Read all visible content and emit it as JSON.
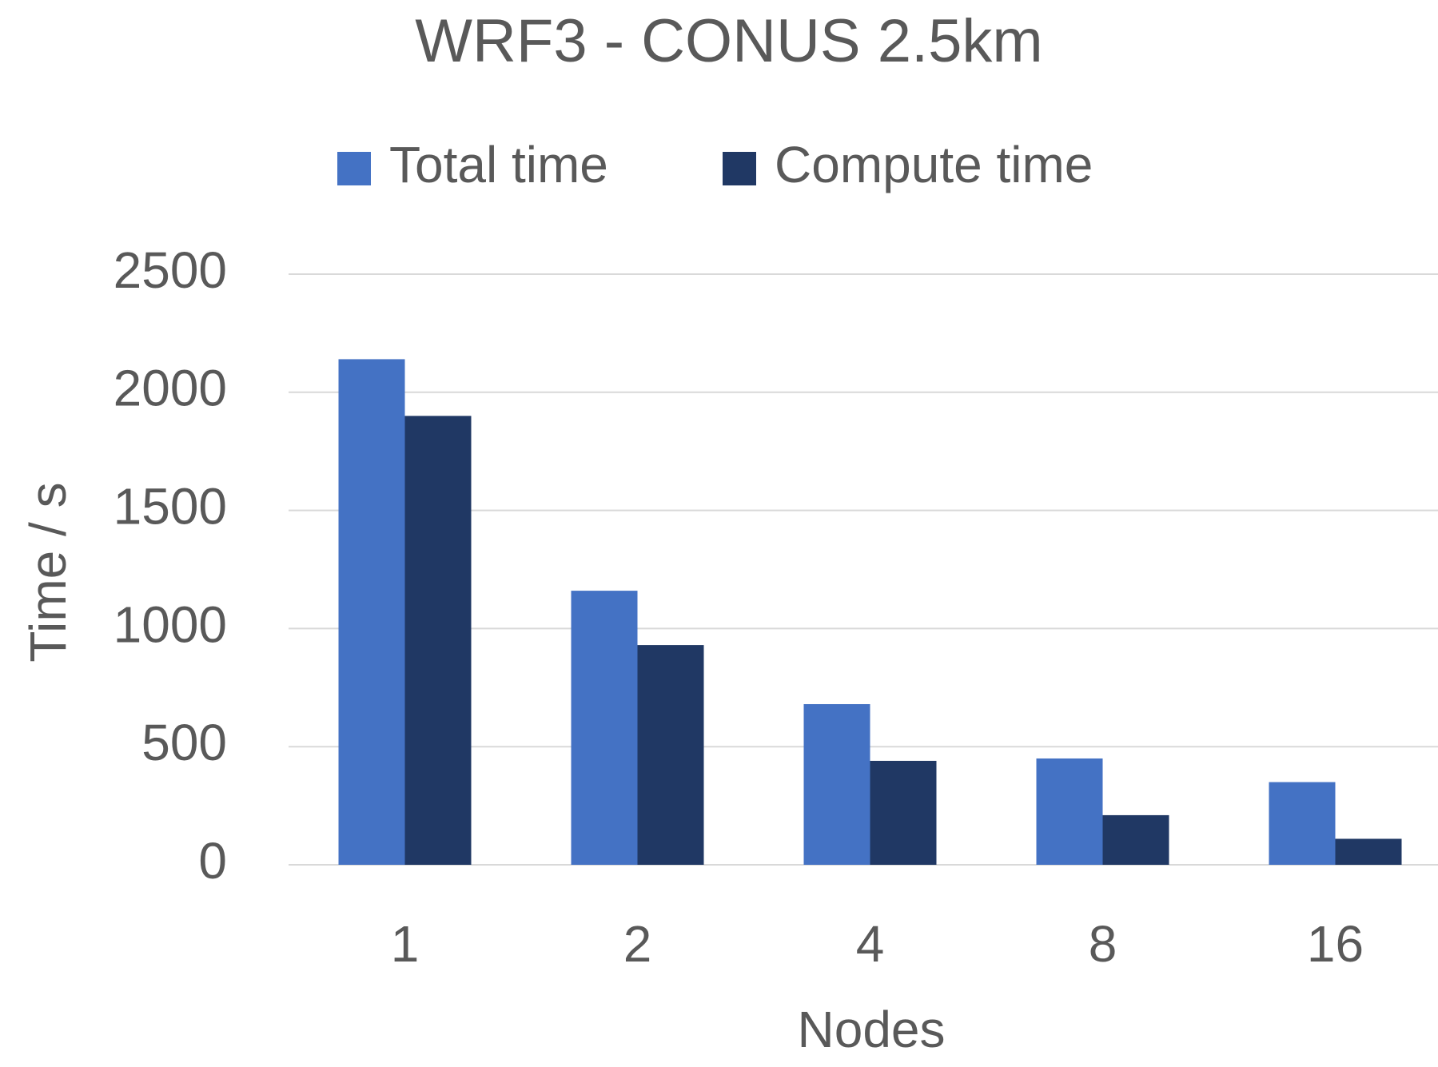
{
  "chart_data": {
    "type": "bar",
    "title": "WRF3 - CONUS 2.5km",
    "x_label": "Nodes",
    "y_label": "Time / s",
    "categories": [
      "1",
      "2",
      "4",
      "8",
      "16"
    ],
    "series": [
      {
        "name": "Total time",
        "color": "#4472c4",
        "values": [
          2140,
          1160,
          680,
          450,
          350
        ]
      },
      {
        "name": "Compute time",
        "color": "#203864",
        "values": [
          1900,
          930,
          440,
          210,
          110
        ]
      }
    ],
    "ylim": [
      0,
      2500
    ],
    "yticks": [
      0,
      500,
      1000,
      1500,
      2000,
      2500
    ],
    "grid": true,
    "legend": "top"
  }
}
